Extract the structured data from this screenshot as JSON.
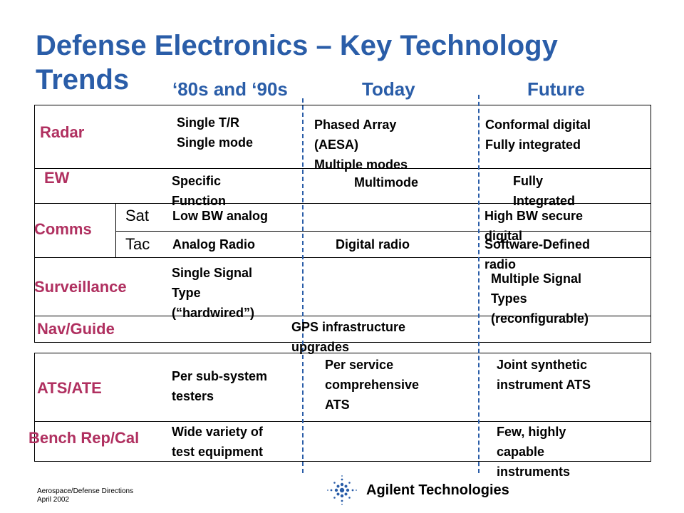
{
  "title": "Defense Electronics – Key Technology Trends",
  "columns": [
    "‘80s and ‘90s",
    "Today",
    "Future"
  ],
  "rows": {
    "radar": {
      "label": "Radar",
      "c1": "Single T/R\nSingle mode",
      "c2": "Phased Array\n(AESA)\nMultiple modes",
      "c3": "Conformal digital\nFully integrated"
    },
    "ew": {
      "label": "EW",
      "c1": "Specific\nFunction",
      "c2": "Multimode",
      "c3": "Fully\nIntegrated"
    },
    "comms": {
      "label": "Comms",
      "sat": {
        "label": "Sat",
        "c1": "Low BW analog",
        "c3": "High BW secure\ndigital"
      },
      "tac": {
        "label": "Tac",
        "c1": "Analog Radio",
        "c2": "Digital radio",
        "c3": "Software-Defined\nradio"
      }
    },
    "surveillance": {
      "label": "Surveillance",
      "c1": "Single Signal\nType\n(“hardwired”)",
      "c3": "Multiple Signal\nTypes\n(reconfigurable)"
    },
    "nav": {
      "label": "Nav/Guide",
      "c2": "GPS infrastructure\nupgrades"
    },
    "ats": {
      "label": "ATS/ATE",
      "c1": "Per sub-system\ntesters",
      "c2": "Per service\ncomprehensive\nATS",
      "c3": "Joint synthetic\ninstrument ATS"
    },
    "bench": {
      "label": "Bench Rep/Cal",
      "c1": "Wide variety of\ntest equipment",
      "c3": "Few, highly\ncapable\ninstruments"
    }
  },
  "footer": {
    "line1": "Aerospace/Defense Directions",
    "line2": "April 2002"
  },
  "logo": {
    "text": "Agilent Technologies",
    "icon": "agilent-spark-icon"
  },
  "colors": {
    "title": "#2a5da8",
    "row_label": "#b03060",
    "divider": "#2a5da8"
  }
}
